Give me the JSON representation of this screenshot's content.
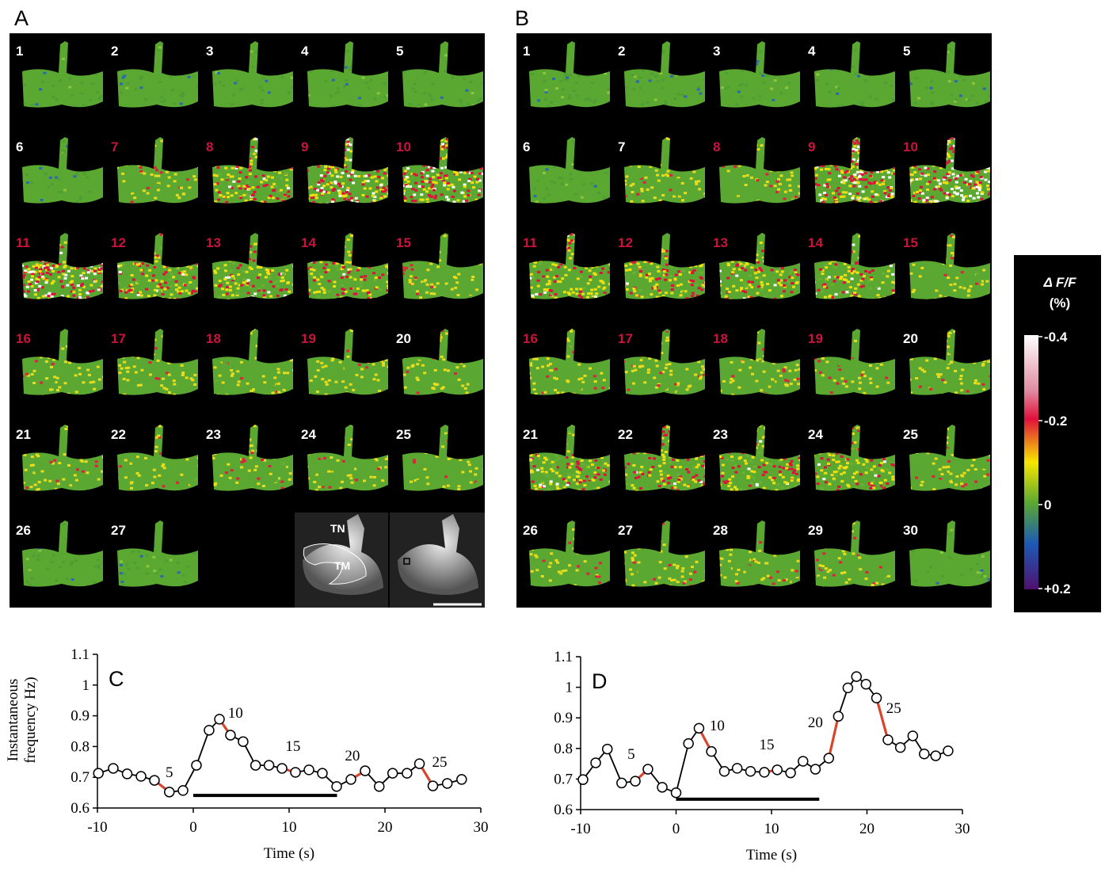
{
  "panels": [
    {
      "label": "A",
      "frames": [
        {
          "label": "1",
          "color": "#ffffff"
        },
        {
          "label": "2",
          "color": "#ffffff"
        },
        {
          "label": "3",
          "color": "#ffffff"
        },
        {
          "label": "4",
          "color": "#ffffff"
        },
        {
          "label": "5",
          "color": "#ffffff"
        },
        {
          "label": "6",
          "color": "#ffffff"
        },
        {
          "label": "7",
          "color": "#c8143c"
        },
        {
          "label": "8",
          "color": "#c8143c"
        },
        {
          "label": "9",
          "color": "#c8143c"
        },
        {
          "label": "10",
          "color": "#c8143c"
        },
        {
          "label": "11",
          "color": "#c8143c"
        },
        {
          "label": "12",
          "color": "#c8143c"
        },
        {
          "label": "13",
          "color": "#c8143c"
        },
        {
          "label": "14",
          "color": "#c8143c"
        },
        {
          "label": "15",
          "color": "#c8143c"
        },
        {
          "label": "16",
          "color": "#c8143c"
        },
        {
          "label": "17",
          "color": "#c8143c"
        },
        {
          "label": "18",
          "color": "#c8143c"
        },
        {
          "label": "19",
          "color": "#c8143c"
        },
        {
          "label": "20",
          "color": "#ffffff"
        },
        {
          "label": "21",
          "color": "#ffffff"
        },
        {
          "label": "22",
          "color": "#ffffff"
        },
        {
          "label": "23",
          "color": "#ffffff"
        },
        {
          "label": "24",
          "color": "#ffffff"
        },
        {
          "label": "25",
          "color": "#ffffff"
        },
        {
          "label": "26",
          "color": "#ffffff"
        },
        {
          "label": "27",
          "color": "#ffffff"
        }
      ],
      "inset_labels": [
        "TN",
        "TM"
      ]
    },
    {
      "label": "B",
      "frames": [
        {
          "label": "1",
          "color": "#ffffff"
        },
        {
          "label": "2",
          "color": "#ffffff"
        },
        {
          "label": "3",
          "color": "#ffffff"
        },
        {
          "label": "4",
          "color": "#ffffff"
        },
        {
          "label": "5",
          "color": "#ffffff"
        },
        {
          "label": "6",
          "color": "#ffffff"
        },
        {
          "label": "7",
          "color": "#ffffff"
        },
        {
          "label": "8",
          "color": "#c8143c"
        },
        {
          "label": "9",
          "color": "#c8143c"
        },
        {
          "label": "10",
          "color": "#c8143c"
        },
        {
          "label": "11",
          "color": "#c8143c"
        },
        {
          "label": "12",
          "color": "#c8143c"
        },
        {
          "label": "13",
          "color": "#c8143c"
        },
        {
          "label": "14",
          "color": "#c8143c"
        },
        {
          "label": "15",
          "color": "#c8143c"
        },
        {
          "label": "16",
          "color": "#c8143c"
        },
        {
          "label": "17",
          "color": "#c8143c"
        },
        {
          "label": "18",
          "color": "#c8143c"
        },
        {
          "label": "19",
          "color": "#c8143c"
        },
        {
          "label": "20",
          "color": "#ffffff"
        },
        {
          "label": "21",
          "color": "#ffffff"
        },
        {
          "label": "22",
          "color": "#ffffff"
        },
        {
          "label": "23",
          "color": "#ffffff"
        },
        {
          "label": "24",
          "color": "#ffffff"
        },
        {
          "label": "25",
          "color": "#ffffff"
        },
        {
          "label": "26",
          "color": "#ffffff"
        },
        {
          "label": "27",
          "color": "#ffffff"
        },
        {
          "label": "28",
          "color": "#ffffff"
        },
        {
          "label": "29",
          "color": "#ffffff"
        },
        {
          "label": "30",
          "color": "#ffffff"
        }
      ]
    }
  ],
  "colorbar": {
    "title": "Δ F/F",
    "unit": "(%)",
    "lim": [
      0.2,
      -0.4
    ],
    "ticks": [
      -0.4,
      -0.2,
      0,
      {
        "value": 0.2,
        "label": "+0.2"
      }
    ]
  },
  "chart_data": [
    {
      "type": "line",
      "panel_label": "C",
      "ylabel": [
        "Instantaneous",
        "frequency Hz)"
      ],
      "xlabel": "Time (s)",
      "xlim": [
        -10,
        30
      ],
      "ylim": [
        0.6,
        1.1
      ],
      "xticks": [
        -10,
        0,
        10,
        20,
        30
      ],
      "yticks": [
        0.6,
        0.7,
        0.8,
        0.9,
        1,
        1.1
      ],
      "x": [
        -9.9,
        -8.35,
        -6.9,
        -5.45,
        -4.05,
        -2.5,
        -1.07,
        0.33,
        1.65,
        2.73,
        3.88,
        5.2,
        6.5,
        7.9,
        9.26,
        10.66,
        12.07,
        13.47,
        14.96,
        16.45,
        17.93,
        19.4,
        20.8,
        22.3,
        23.6,
        25.0,
        26.5,
        28.0
      ],
      "series": [
        {
          "color": "#000000",
          "marker": "open-circle",
          "values": [
            0.713,
            0.729,
            0.711,
            0.703,
            0.69,
            0.652,
            0.657,
            0.739,
            0.853,
            0.889,
            0.837,
            0.816,
            0.739,
            0.739,
            0.729,
            0.716,
            0.724,
            0.713,
            0.67,
            0.693,
            0.721,
            0.67,
            0.713,
            0.713,
            0.744,
            0.672,
            0.68,
            0.693
          ]
        },
        {
          "color": "#d9442b",
          "values": [
            null,
            null,
            null,
            null,
            0.69,
            0.652,
            null,
            null,
            null,
            0.889,
            0.837,
            null,
            null,
            null,
            0.729,
            0.716,
            null,
            null,
            null,
            0.693,
            0.721,
            null,
            null,
            null,
            0.744,
            0.672,
            null,
            null
          ]
        }
      ],
      "annotations": [
        {
          "text": "5",
          "x": -2.5,
          "y": 0.7
        },
        {
          "text": "10",
          "x": 4.4,
          "y": 0.894
        },
        {
          "text": "15",
          "x": 10.4,
          "y": 0.786
        },
        {
          "text": "20",
          "x": 16.6,
          "y": 0.755
        },
        {
          "text": "25",
          "x": 25.7,
          "y": 0.734
        }
      ],
      "stimulus": {
        "x": [
          0,
          15
        ],
        "y": 0.641
      }
    },
    {
      "type": "line",
      "panel_label": "D",
      "xlabel": "Time (s)",
      "xlim": [
        -10,
        30
      ],
      "ylim": [
        0.6,
        1.1
      ],
      "xticks": [
        -10,
        0,
        10,
        20,
        30
      ],
      "yticks": [
        0.6,
        0.7,
        0.8,
        0.9,
        1,
        1.1
      ],
      "x": [
        -9.75,
        -8.42,
        -7.2,
        -5.7,
        -4.27,
        -2.95,
        -1.45,
        0.0,
        1.3,
        2.4,
        3.7,
        5.06,
        6.4,
        7.8,
        9.25,
        10.6,
        12.0,
        13.3,
        14.6,
        16.0,
        17.0,
        18.0,
        18.9,
        19.9,
        21.0,
        22.2,
        23.5,
        24.8,
        26.0,
        27.2,
        28.5
      ],
      "series": [
        {
          "color": "#000000",
          "marker": "open-circle",
          "values": [
            0.698,
            0.753,
            0.798,
            0.687,
            0.693,
            0.732,
            0.673,
            0.655,
            0.816,
            0.866,
            0.79,
            0.725,
            0.735,
            0.725,
            0.722,
            0.73,
            0.72,
            0.758,
            0.732,
            0.768,
            0.905,
            0.998,
            1.035,
            1.01,
            0.965,
            0.828,
            0.803,
            0.841,
            0.782,
            0.776,
            0.792
          ]
        },
        {
          "color": "#d9442b",
          "values": [
            null,
            null,
            null,
            null,
            0.693,
            0.732,
            null,
            null,
            null,
            0.866,
            0.79,
            null,
            null,
            null,
            0.722,
            0.73,
            null,
            null,
            null,
            0.768,
            0.905,
            null,
            null,
            null,
            0.965,
            0.828,
            null,
            null,
            null,
            null,
            null
          ]
        }
      ],
      "annotations": [
        {
          "text": "5",
          "x": -4.7,
          "y": 0.766
        },
        {
          "text": "10",
          "x": 4.3,
          "y": 0.859
        },
        {
          "text": "15",
          "x": 9.5,
          "y": 0.797
        },
        {
          "text": "20",
          "x": 14.6,
          "y": 0.87
        },
        {
          "text": "25",
          "x": 22.8,
          "y": 0.916
        }
      ],
      "stimulus": {
        "x": [
          0,
          15
        ],
        "y": 0.634
      }
    }
  ]
}
